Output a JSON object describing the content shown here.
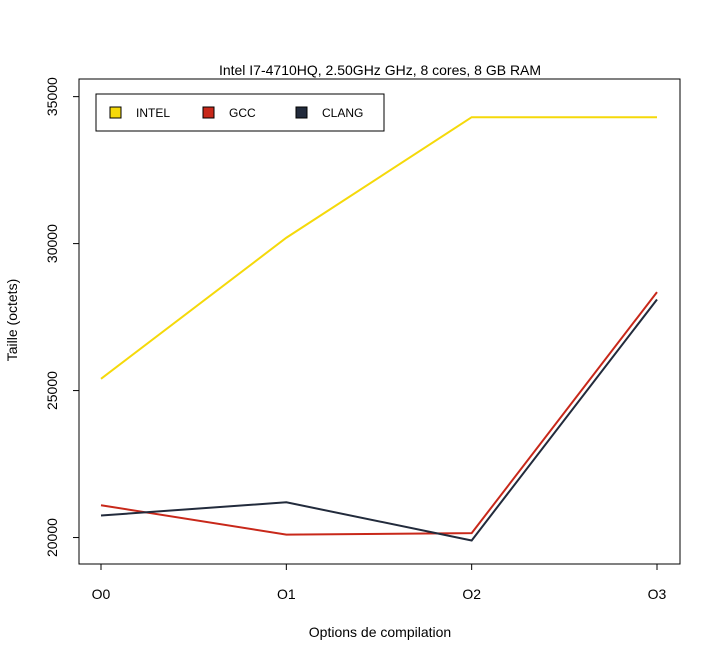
{
  "chart_data": {
    "type": "line",
    "title": "Intel I7-4710HQ, 2.50GHz GHz, 8 cores, 8 GB RAM",
    "xlabel": "Options de compilation",
    "ylabel": "Taille (octets)",
    "categories": [
      "O0",
      "O1",
      "O2",
      "O3"
    ],
    "yticks": [
      "20000",
      "25000",
      "30000",
      "35000"
    ],
    "ylim": [
      19100,
      35600
    ],
    "grid": false,
    "legend_position": "top-left",
    "series": [
      {
        "name": "INTEL",
        "color": "#f5d90a",
        "values": [
          25400,
          30200,
          34300,
          34300
        ]
      },
      {
        "name": "GCC",
        "color": "#c8281a",
        "values": [
          21100,
          20100,
          20150,
          28350
        ]
      },
      {
        "name": "CLANG",
        "color": "#222b3c",
        "values": [
          20750,
          21200,
          19900,
          28100
        ]
      }
    ]
  }
}
